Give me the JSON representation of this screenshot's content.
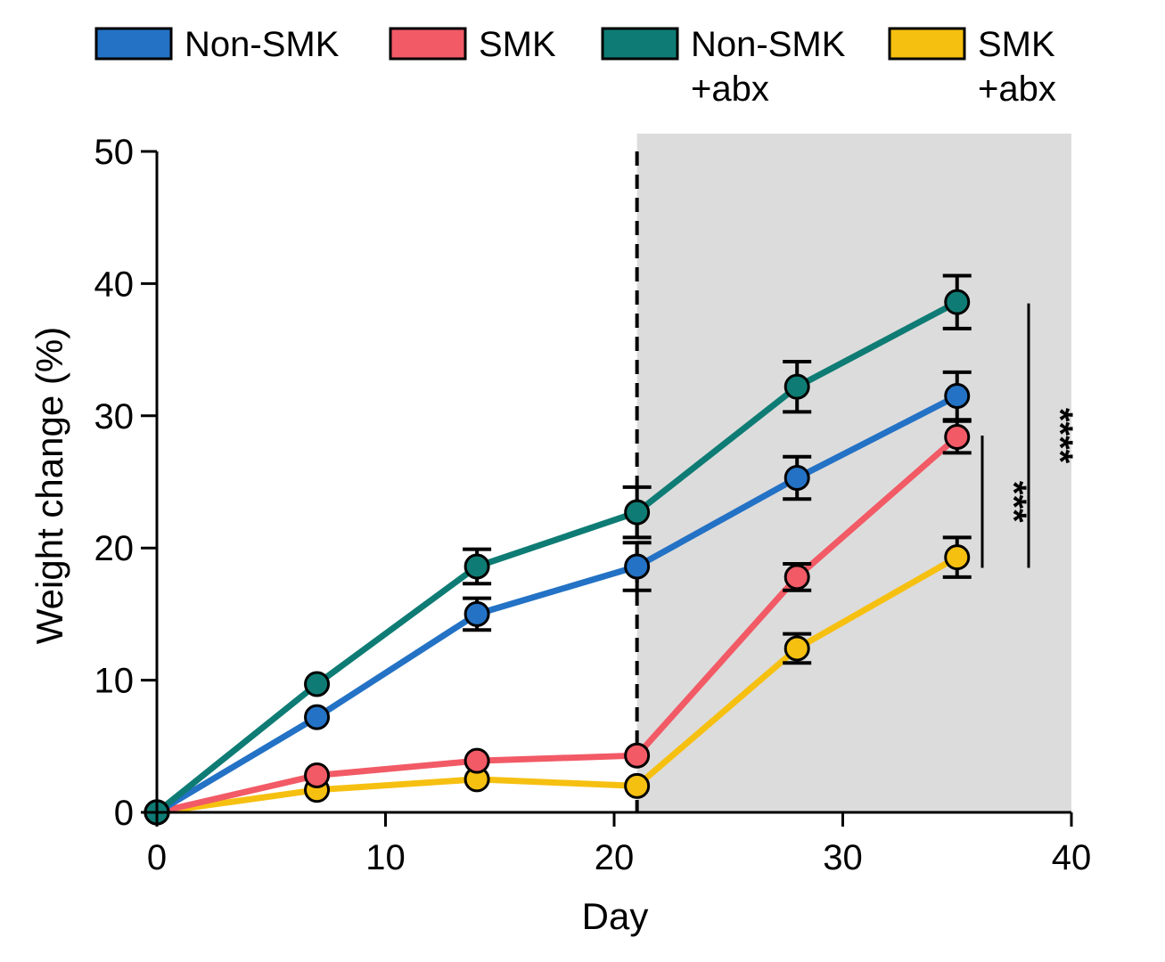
{
  "chart_data": {
    "type": "line",
    "xlabel": "Day",
    "ylabel": "Weight change (%)",
    "xlim": [
      0,
      40
    ],
    "ylim": [
      0,
      50
    ],
    "x_ticks": [
      "0",
      "10",
      "20",
      "30",
      "40"
    ],
    "y_ticks": [
      "0",
      "10",
      "20",
      "30",
      "40",
      "50"
    ],
    "x": [
      0,
      7,
      14,
      21,
      28,
      35
    ],
    "legend_position": "top",
    "shaded_region": {
      "x_start": 21,
      "x_end": 40,
      "color": "#dcdcdc"
    },
    "vertical_marker": {
      "x": 21,
      "style": "dashed"
    },
    "series": [
      {
        "name": "Non-SMK",
        "name_lines": [
          "Non-SMK"
        ],
        "color": "#2372c5",
        "values": [
          0,
          7.2,
          15.0,
          18.6,
          25.3,
          31.5
        ],
        "errors": [
          0,
          0,
          1.2,
          1.8,
          1.6,
          1.8
        ]
      },
      {
        "name": "SMK",
        "name_lines": [
          "SMK"
        ],
        "color": "#f25a66",
        "values": [
          0,
          2.8,
          3.9,
          4.3,
          17.8,
          28.4
        ],
        "errors": [
          0,
          0,
          0,
          0,
          1.0,
          1.2
        ]
      },
      {
        "name": "Non-SMK +abx",
        "name_lines": [
          "Non-SMK",
          "+abx"
        ],
        "color": "#0e7c74",
        "values": [
          0,
          9.7,
          18.6,
          22.7,
          32.2,
          38.6
        ],
        "errors": [
          0,
          0,
          1.3,
          1.9,
          1.9,
          2.0
        ]
      },
      {
        "name": "SMK +abx",
        "name_lines": [
          "SMK",
          "+abx"
        ],
        "color": "#f6c011",
        "values": [
          0,
          1.7,
          2.5,
          2.0,
          12.4,
          19.3
        ],
        "errors": [
          0,
          0,
          0,
          0,
          1.1,
          1.5
        ]
      }
    ],
    "significance": [
      {
        "label": "***",
        "y_range": [
          18.5,
          28.5
        ]
      },
      {
        "label": "****",
        "y_range": [
          18.5,
          38.5
        ]
      }
    ]
  }
}
